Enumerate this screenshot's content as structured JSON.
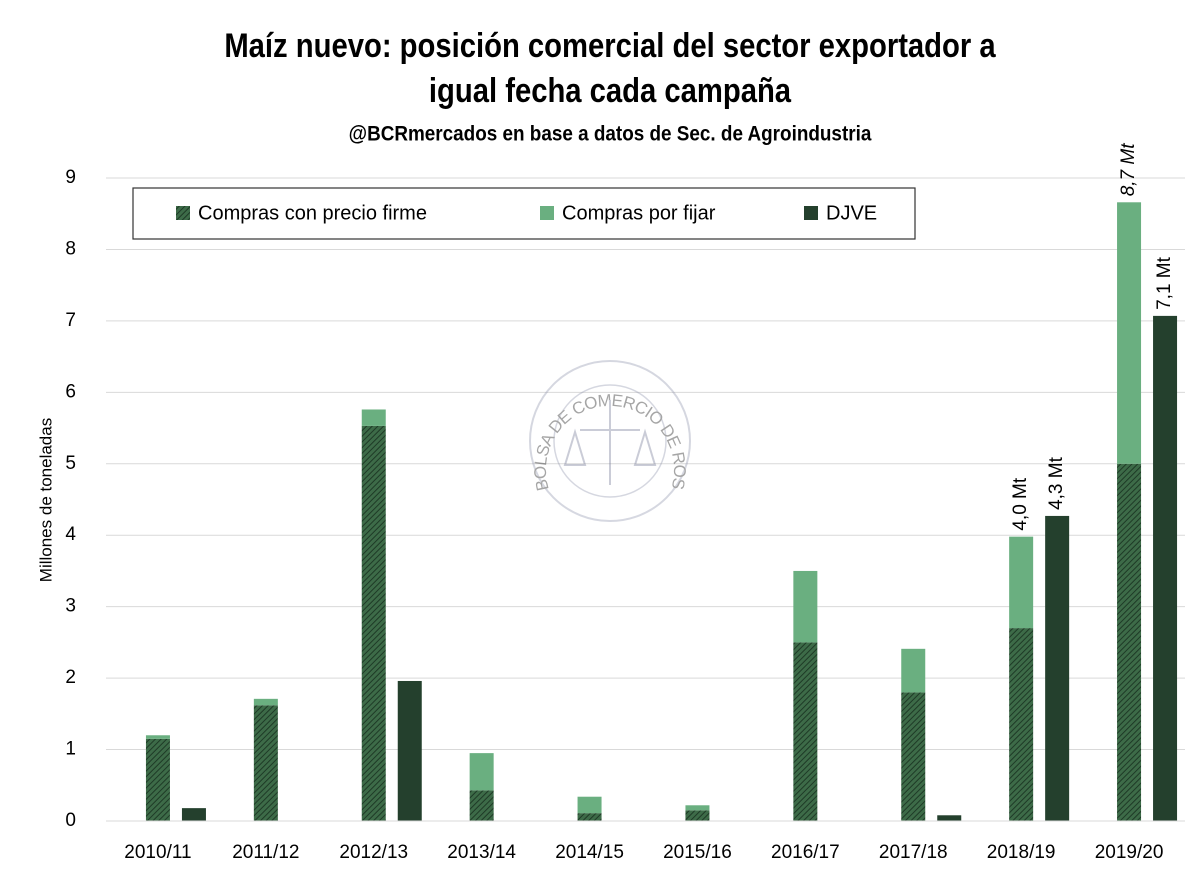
{
  "chart_data": {
    "type": "grouped_stacked_bar",
    "title": [
      "Maíz nuevo: posición comercial del sector exportador a",
      "igual fecha cada campaña"
    ],
    "subtitle": "@BCRmercados en base a datos de Sec. de Agroindustria",
    "y_label": "Millones de toneladas",
    "watermark": "BOLSA DE COMERCIO DE ROSARIO",
    "categories": [
      "2010/11",
      "2011/12",
      "2012/13",
      "2013/14",
      "2014/15",
      "2015/16",
      "2016/17",
      "2017/18",
      "2018/19",
      "2019/20"
    ],
    "series": [
      {
        "name": "Compras con precio firme",
        "color": "#3d6b48",
        "hatch": true,
        "stack": "compras",
        "values": [
          1.15,
          1.62,
          5.53,
          0.43,
          0.11,
          0.15,
          2.5,
          1.8,
          2.7,
          5.0
        ]
      },
      {
        "name": "Compras por fijar",
        "color": "#6aaf80",
        "stack": "compras",
        "values": [
          0.05,
          0.09,
          0.23,
          0.52,
          0.23,
          0.07,
          1.0,
          0.61,
          1.28,
          3.66
        ]
      },
      {
        "name": "DJVE",
        "color": "#24402d",
        "stack": "djve",
        "values": [
          0.18,
          null,
          1.96,
          null,
          null,
          null,
          null,
          0.08,
          4.27,
          7.07
        ],
        "value_labels": [
          null,
          null,
          null,
          null,
          null,
          null,
          null,
          null,
          "4,3 Mt",
          "7,1 Mt"
        ]
      }
    ],
    "annotations": [
      {
        "category": 8,
        "text": "4,0 Mt"
      },
      {
        "category": 9,
        "text": "8,7 Mt",
        "italic": true
      }
    ],
    "ylim": [
      0,
      9
    ],
    "yticks": [
      0,
      1,
      2,
      3,
      4,
      5,
      6,
      7,
      8,
      9
    ],
    "grid": true,
    "legend": "top"
  }
}
